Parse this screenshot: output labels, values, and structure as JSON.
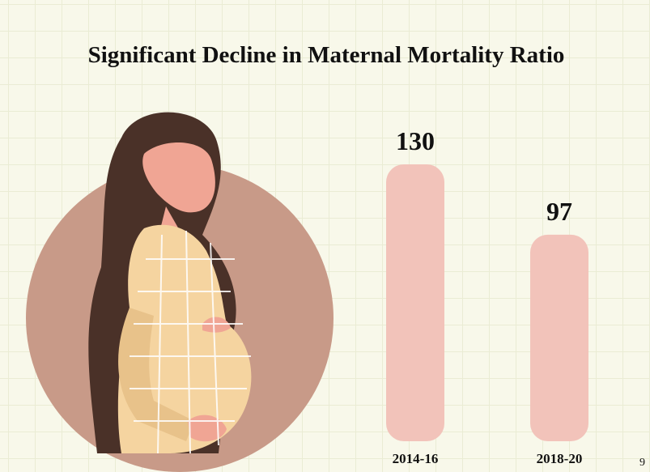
{
  "chart_data": {
    "type": "bar",
    "title": "Significant Decline in Maternal Mortality Ratio",
    "categories": [
      "2014-16",
      "2018-20"
    ],
    "values": [
      130,
      97
    ],
    "color": "#f2c3ba"
  },
  "page_number": "9"
}
